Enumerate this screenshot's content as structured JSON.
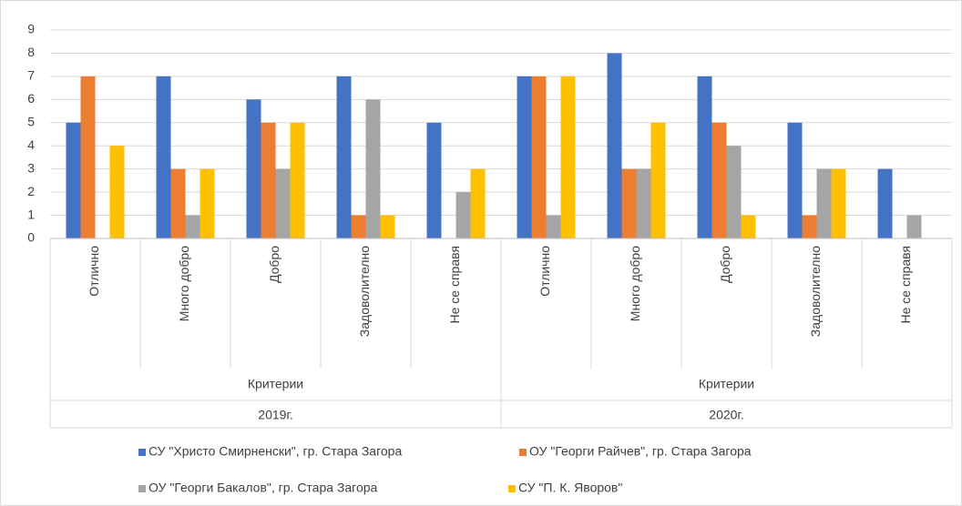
{
  "chart_data": {
    "type": "bar",
    "categories": [
      "Отлично",
      "Много добро",
      "Добро",
      "Задоволително",
      "Не се справя",
      "Отлично",
      "Много добро",
      "Добро",
      "Задоволително",
      "Не се справя"
    ],
    "group_labels": [
      "Критерии",
      "Критерии"
    ],
    "years": [
      "2019г.",
      "2020г."
    ],
    "series": [
      {
        "name": "СУ \"Христо Смирненски\", гр. Стара Загора",
        "color": "#4472c4",
        "values": [
          5,
          7,
          6,
          7,
          5,
          7,
          8,
          7,
          5,
          3
        ]
      },
      {
        "name": "ОУ \"Георги Райчев\", гр. Стара Загора",
        "color": "#ed7d31",
        "values": [
          7,
          3,
          5,
          1,
          0,
          7,
          3,
          5,
          1,
          0
        ]
      },
      {
        "name": "ОУ \"Георги Бакалов\", гр. Стара Загора",
        "color": "#a5a5a5",
        "values": [
          0,
          1,
          3,
          6,
          2,
          1,
          3,
          4,
          3,
          1
        ]
      },
      {
        "name": "СУ \"П. К. Яворов\"",
        "color": "#ffc000",
        "values": [
          4,
          3,
          5,
          1,
          3,
          7,
          5,
          1,
          3,
          0
        ]
      }
    ],
    "ylim": [
      0,
      9
    ],
    "yticks": [
      0,
      1,
      2,
      3,
      4,
      5,
      6,
      7,
      8,
      9
    ],
    "grid": true
  }
}
